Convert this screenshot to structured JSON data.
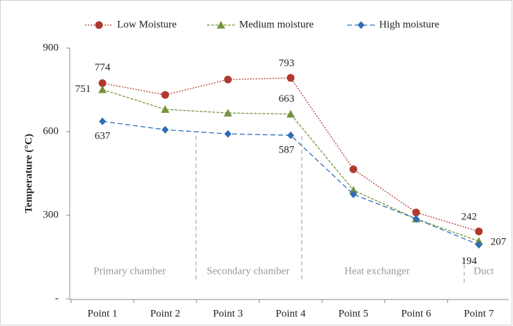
{
  "chart_data": {
    "type": "line",
    "ylabel": "Temperature (°C)",
    "categories": [
      "Point 1",
      "Point 2",
      "Point 3",
      "Point 4",
      "Point 5",
      "Point 6",
      "Point 7"
    ],
    "series": [
      {
        "name": "Low Moisture",
        "color": "#b0392f",
        "values": [
          774,
          732,
          787,
          793,
          465,
          310,
          242
        ]
      },
      {
        "name": "Medium moisture",
        "color": "#77933c",
        "values": [
          751,
          680,
          667,
          663,
          390,
          287,
          207
        ]
      },
      {
        "name": "High moisture",
        "color": "#2e6db4",
        "values": [
          637,
          607,
          592,
          587,
          375,
          287,
          194
        ]
      }
    ],
    "ylim": [
      0,
      900
    ],
    "yticks": [
      {
        "value": 0,
        "label": "-"
      },
      300,
      600,
      900
    ],
    "annotations": [
      "Primary chamber",
      "Secondary chamber",
      "Heat exchanger",
      "Duct"
    ],
    "legend": "top"
  }
}
